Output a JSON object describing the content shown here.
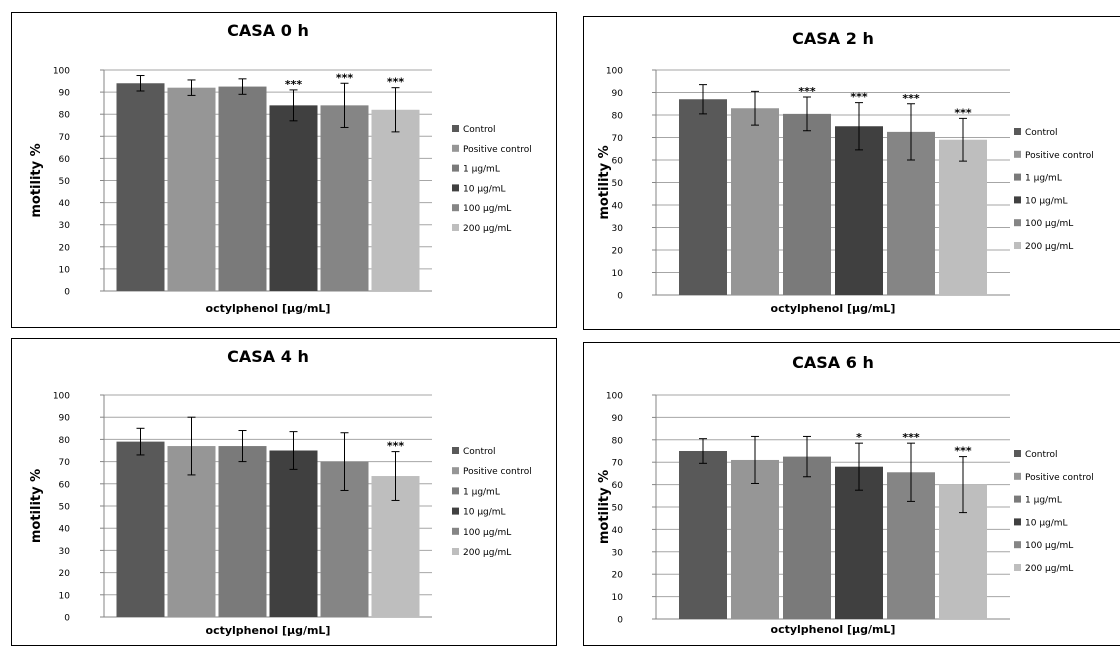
{
  "chart_data": [
    {
      "type": "bar",
      "title": "CASA 0 h",
      "xlabel": "octylphenol [µg/mL]",
      "ylabel": "motility %",
      "ylim": [
        0,
        100
      ],
      "yticks": [
        0,
        10,
        20,
        30,
        40,
        50,
        60,
        70,
        80,
        90,
        100
      ],
      "grid": true,
      "legend_position": "right",
      "series": [
        {
          "name": "Control",
          "values": [
            94
          ],
          "errors": [
            3.5
          ],
          "significance": "",
          "color": "#595959"
        },
        {
          "name": "Positive control",
          "values": [
            92
          ],
          "errors": [
            3.5
          ],
          "significance": "",
          "color": "#969696"
        },
        {
          "name": "1 µg/mL",
          "values": [
            92.5
          ],
          "errors": [
            3.5
          ],
          "significance": "",
          "color": "#7a7a7a"
        },
        {
          "name": "10 µg/mL",
          "values": [
            84
          ],
          "errors": [
            7
          ],
          "significance": "***",
          "color": "#404040"
        },
        {
          "name": "100 µg/mL",
          "values": [
            84
          ],
          "errors": [
            10
          ],
          "significance": "***",
          "color": "#858585"
        },
        {
          "name": "200 µg/mL",
          "values": [
            82
          ],
          "errors": [
            10
          ],
          "significance": "***",
          "color": "#bebebe"
        }
      ]
    },
    {
      "type": "bar",
      "title": "CASA 2 h",
      "xlabel": "octylphenol [µg/mL]",
      "ylabel": "motility %",
      "ylim": [
        0,
        100
      ],
      "yticks": [
        0,
        10,
        20,
        30,
        40,
        50,
        60,
        70,
        80,
        90,
        100
      ],
      "grid": true,
      "legend_position": "right",
      "series": [
        {
          "name": "Control",
          "values": [
            87
          ],
          "errors": [
            6.5
          ],
          "significance": "",
          "color": "#595959"
        },
        {
          "name": "Positive control",
          "values": [
            83
          ],
          "errors": [
            7.5
          ],
          "significance": "",
          "color": "#969696"
        },
        {
          "name": "1 µg/mL",
          "values": [
            80.5
          ],
          "errors": [
            7.5
          ],
          "significance": "***",
          "color": "#7a7a7a"
        },
        {
          "name": "10 µg/mL",
          "values": [
            75
          ],
          "errors": [
            10.5
          ],
          "significance": "***",
          "color": "#404040"
        },
        {
          "name": "100 µg/mL",
          "values": [
            72.5
          ],
          "errors": [
            12.5
          ],
          "significance": "***",
          "color": "#858585"
        },
        {
          "name": "200 µg/mL",
          "values": [
            69
          ],
          "errors": [
            9.5
          ],
          "significance": "***",
          "color": "#bebebe"
        }
      ]
    },
    {
      "type": "bar",
      "title": "CASA 4 h",
      "xlabel": "octylphenol [µg/mL]",
      "ylabel": "motility %",
      "ylim": [
        0,
        100
      ],
      "yticks": [
        0,
        10,
        20,
        30,
        40,
        50,
        60,
        70,
        80,
        90,
        100
      ],
      "grid": true,
      "legend_position": "right",
      "series": [
        {
          "name": "Control",
          "values": [
            79
          ],
          "errors": [
            6
          ],
          "significance": "",
          "color": "#595959"
        },
        {
          "name": "Positive control",
          "values": [
            77
          ],
          "errors": [
            13
          ],
          "significance": "",
          "color": "#969696"
        },
        {
          "name": "1 µg/mL",
          "values": [
            77
          ],
          "errors": [
            7
          ],
          "significance": "",
          "color": "#7a7a7a"
        },
        {
          "name": "10 µg/mL",
          "values": [
            75
          ],
          "errors": [
            8.5
          ],
          "significance": "",
          "color": "#404040"
        },
        {
          "name": "100 µg/mL",
          "values": [
            70
          ],
          "errors": [
            13
          ],
          "significance": "",
          "color": "#858585"
        },
        {
          "name": "200 µg/mL",
          "values": [
            63.5
          ],
          "errors": [
            11
          ],
          "significance": "***",
          "color": "#bebebe"
        }
      ]
    },
    {
      "type": "bar",
      "title": "CASA 6 h",
      "xlabel": "octylphenol [µg/mL]",
      "ylabel": "motility %",
      "ylim": [
        0,
        100
      ],
      "yticks": [
        0,
        10,
        20,
        30,
        40,
        50,
        60,
        70,
        80,
        90,
        100
      ],
      "grid": true,
      "legend_position": "right",
      "series": [
        {
          "name": "Control",
          "values": [
            75
          ],
          "errors": [
            5.5
          ],
          "significance": "",
          "color": "#595959"
        },
        {
          "name": "Positive control",
          "values": [
            71
          ],
          "errors": [
            10.5
          ],
          "significance": "",
          "color": "#969696"
        },
        {
          "name": "1 µg/mL",
          "values": [
            72.5
          ],
          "errors": [
            9
          ],
          "significance": "",
          "color": "#7a7a7a"
        },
        {
          "name": "10 µg/mL",
          "values": [
            68
          ],
          "errors": [
            10.5
          ],
          "significance": "*",
          "color": "#404040"
        },
        {
          "name": "100 µg/mL",
          "values": [
            65.5
          ],
          "errors": [
            13
          ],
          "significance": "***",
          "color": "#858585"
        },
        {
          "name": "200 µg/mL",
          "values": [
            60
          ],
          "errors": [
            12.5
          ],
          "significance": "***",
          "color": "#bebebe"
        }
      ]
    }
  ]
}
